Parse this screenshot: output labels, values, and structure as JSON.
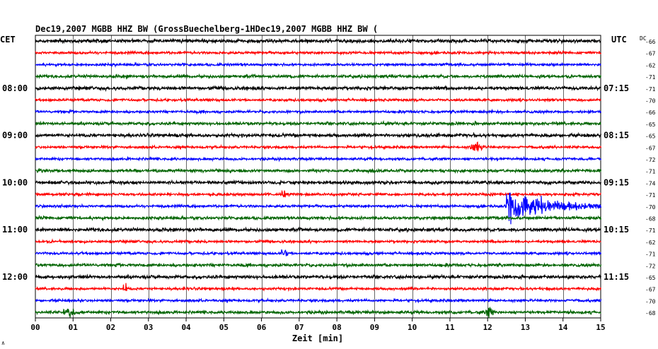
{
  "header": {
    "title": "Dec19,2007   MGBB HHZ BW (GrossBuechelberg-1HDec19,2007   MGBB HHZ BW ("
  },
  "left_timezone": "CET",
  "right_timezone": "UTC",
  "dc_label": "DC",
  "corner_mark": "∧",
  "chart_data": {
    "type": "line",
    "title": "Dec19,2007   MGBB HHZ BW (GrossBuechelberg-1HDec19,2007   MGBB HHZ BW (",
    "xlabel": "Zeit [min]",
    "ylabel": "",
    "xlim": [
      0,
      15
    ],
    "x_ticks": [
      "00",
      "01",
      "02",
      "03",
      "04",
      "05",
      "06",
      "07",
      "08",
      "09",
      "10",
      "11",
      "12",
      "13",
      "14",
      "15"
    ],
    "grid": true,
    "trace_colors": [
      "#000000",
      "#ff0000",
      "#0000ff",
      "#006400"
    ],
    "left_hour_labels": [
      {
        "trace": 4,
        "label": "08:00"
      },
      {
        "trace": 8,
        "label": "09:00"
      },
      {
        "trace": 12,
        "label": "10:00"
      },
      {
        "trace": 16,
        "label": "11:00"
      },
      {
        "trace": 20,
        "label": "12:00"
      }
    ],
    "right_hour_labels": [
      {
        "trace": 4,
        "label": "07:15"
      },
      {
        "trace": 8,
        "label": "08:15"
      },
      {
        "trace": 12,
        "label": "09:15"
      },
      {
        "trace": 16,
        "label": "10:15"
      },
      {
        "trace": 20,
        "label": "11:15"
      }
    ],
    "dc_values": [
      -66,
      -67,
      -62,
      -71,
      -71,
      -70,
      -66,
      -65,
      -65,
      -67,
      -72,
      -71,
      -74,
      -71,
      -70,
      -68,
      -71,
      -62,
      -71,
      -72,
      -65,
      -67,
      -70,
      -68
    ],
    "events": [
      {
        "trace": 14,
        "start_min": 12.5,
        "end_min": 15.0,
        "amplitude": "large"
      },
      {
        "trace": 9,
        "start_min": 11.5,
        "end_min": 11.9,
        "amplitude": "small"
      },
      {
        "trace": 13,
        "start_min": 6.5,
        "end_min": 6.65,
        "amplitude": "small"
      },
      {
        "trace": 18,
        "start_min": 6.5,
        "end_min": 6.7,
        "amplitude": "small"
      },
      {
        "trace": 21,
        "start_min": 2.3,
        "end_min": 2.45,
        "amplitude": "small"
      },
      {
        "trace": 23,
        "start_min": 0.7,
        "end_min": 1.1,
        "amplitude": "small"
      },
      {
        "trace": 23,
        "start_min": 11.9,
        "end_min": 12.2,
        "amplitude": "small"
      }
    ]
  }
}
